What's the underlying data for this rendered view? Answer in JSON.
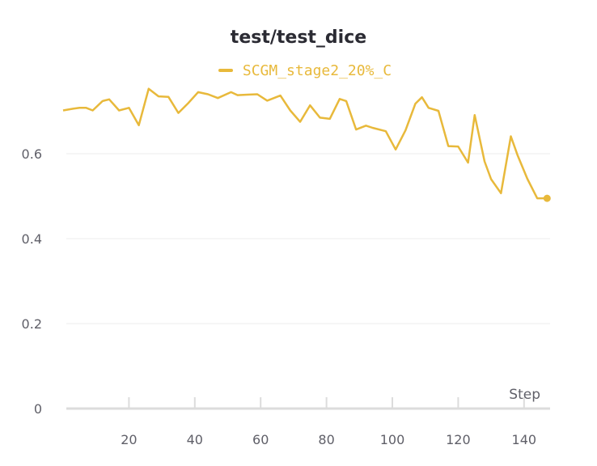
{
  "chart_data": {
    "type": "line",
    "title": "test/test_dice",
    "xlabel": "Step",
    "ylabel": "",
    "xlim": [
      0,
      148
    ],
    "ylim": [
      0,
      0.78
    ],
    "x_ticks": [
      "20",
      "40",
      "60",
      "80",
      "100",
      "120",
      "140"
    ],
    "y_ticks": [
      "0",
      "0.2",
      "0.4",
      "0.6"
    ],
    "grid": true,
    "legend_position": "top-center",
    "series": [
      {
        "name": "SCGM_stage2_20%_C",
        "color": "#e8b93b",
        "x": [
          0,
          3,
          5,
          7,
          9,
          12,
          14,
          17,
          20,
          23,
          26,
          29,
          32,
          35,
          38,
          41,
          44,
          47,
          51,
          53,
          56,
          59,
          62,
          66,
          69,
          72,
          75,
          78,
          81,
          84,
          86,
          89,
          92,
          94,
          98,
          101,
          104,
          107,
          109,
          111,
          114,
          117,
          120,
          123,
          125,
          128,
          130,
          133,
          136,
          138,
          141,
          144,
          147
        ],
        "y": [
          0.702,
          0.706,
          0.708,
          0.708,
          0.702,
          0.724,
          0.728,
          0.702,
          0.708,
          0.667,
          0.753,
          0.735,
          0.734,
          0.696,
          0.719,
          0.745,
          0.74,
          0.731,
          0.745,
          0.738,
          0.739,
          0.74,
          0.725,
          0.737,
          0.702,
          0.675,
          0.714,
          0.685,
          0.682,
          0.729,
          0.724,
          0.657,
          0.666,
          0.661,
          0.653,
          0.61,
          0.655,
          0.718,
          0.733,
          0.708,
          0.701,
          0.618,
          0.617,
          0.579,
          0.691,
          0.582,
          0.54,
          0.507,
          0.641,
          0.597,
          0.541,
          0.495,
          0.495
        ]
      }
    ]
  }
}
